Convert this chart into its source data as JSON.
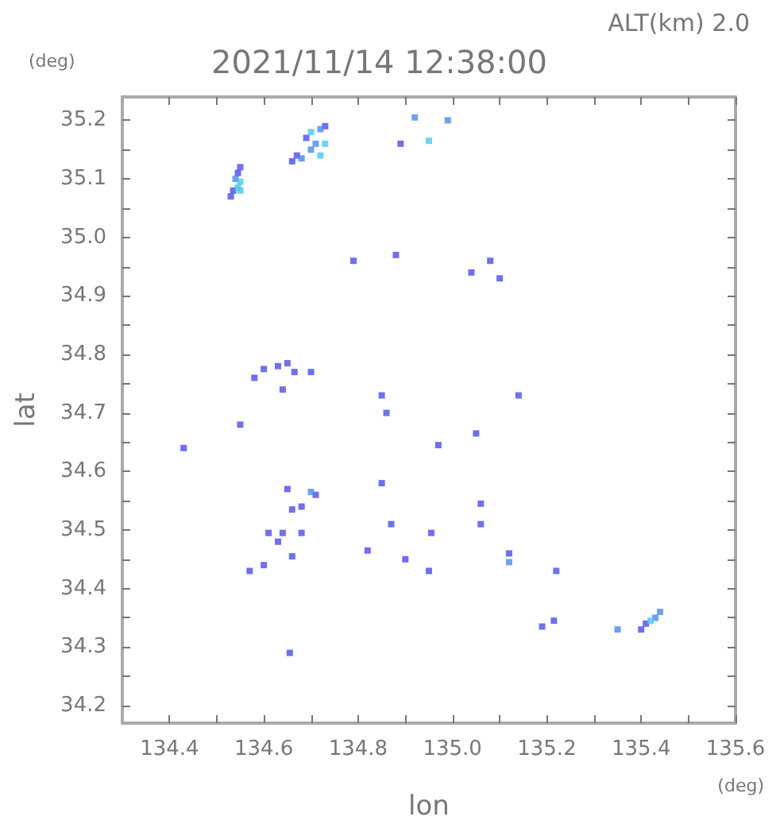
{
  "chart_data": {
    "type": "scatter",
    "title": "2021/11/14 12:38:00",
    "subtitle": "ALT(km) 2.0",
    "xlabel": "lon",
    "ylabel": "lat",
    "annotations": [
      "(deg)",
      "(deg)"
    ],
    "xlim": [
      134.3,
      135.6
    ],
    "ylim": [
      34.17,
      35.24
    ],
    "xticks": [
      134.4,
      {
        "value": 134.5,
        "label": null
      },
      134.6,
      {
        "value": 134.7,
        "label": null
      },
      134.8,
      {
        "value": 134.9,
        "label": null
      },
      {
        "value": 135.0,
        "label": "135.0"
      },
      {
        "value": 135.1,
        "label": null
      },
      135.2,
      {
        "value": 135.3,
        "label": null
      },
      135.4,
      {
        "value": 135.5,
        "label": null
      },
      135.6
    ],
    "yticks": [
      34.2,
      {
        "value": 34.25,
        "label": null
      },
      34.3,
      {
        "value": 34.35,
        "label": null
      },
      34.4,
      {
        "value": 34.45,
        "label": null
      },
      34.5,
      {
        "value": 34.55,
        "label": null
      },
      34.6,
      {
        "value": 34.65,
        "label": null
      },
      34.7,
      {
        "value": 34.75,
        "label": null
      },
      34.8,
      {
        "value": 34.85,
        "label": null
      },
      34.9,
      {
        "value": 34.95,
        "label": null
      },
      {
        "value": 35.0,
        "label": "35.0"
      },
      {
        "value": 35.05,
        "label": null
      },
      35.1,
      {
        "value": 35.15,
        "label": null
      },
      35.2
    ],
    "grid": false,
    "marker": "square",
    "series": [
      {
        "color": "#4b4bf0",
        "x": [
          134.53,
          134.535,
          134.545,
          134.55,
          134.66,
          134.67,
          134.69,
          134.73,
          134.89,
          134.79,
          134.88,
          135.08,
          135.1,
          135.04,
          134.58,
          134.6,
          134.63,
          134.65,
          134.665,
          134.7,
          134.64,
          134.55,
          134.43,
          134.85,
          134.86,
          135.05,
          135.14,
          134.97,
          134.85,
          134.71,
          134.68,
          134.66,
          134.65,
          134.61,
          134.64,
          134.63,
          134.68,
          134.57,
          134.6,
          134.66,
          134.82,
          134.87,
          134.9,
          134.955,
          135.06,
          135.06,
          135.12,
          134.95,
          134.655,
          135.22,
          135.19,
          135.215,
          135.4,
          135.41
        ],
        "values": [
          35.07,
          35.08,
          35.11,
          35.12,
          35.13,
          35.14,
          35.17,
          35.19,
          35.16,
          34.96,
          34.97,
          34.96,
          34.93,
          34.94,
          34.76,
          34.775,
          34.78,
          34.785,
          34.77,
          34.77,
          34.74,
          34.68,
          34.64,
          34.73,
          34.7,
          34.665,
          34.73,
          34.645,
          34.58,
          34.56,
          34.54,
          34.535,
          34.57,
          34.495,
          34.495,
          34.48,
          34.495,
          34.43,
          34.44,
          34.455,
          34.465,
          34.51,
          34.45,
          34.495,
          34.545,
          34.51,
          34.46,
          34.43,
          34.29,
          34.43,
          34.335,
          34.345,
          34.33,
          34.34
        ]
      },
      {
        "color": "#4a8af0",
        "x": [
          134.54,
          134.68,
          134.7,
          134.72,
          134.71,
          134.99,
          134.92,
          135.12,
          135.35,
          135.43,
          135.44,
          134.7
        ],
        "values": [
          35.1,
          35.135,
          35.15,
          35.185,
          35.16,
          35.2,
          35.205,
          34.445,
          34.33,
          34.35,
          34.36,
          34.565
        ]
      },
      {
        "color": "#48c8f0",
        "x": [
          134.545,
          134.55,
          134.7,
          134.73,
          134.72,
          134.95,
          135.42,
          134.55
        ],
        "values": [
          35.085,
          35.095,
          35.18,
          35.16,
          35.14,
          35.165,
          34.345,
          35.08
        ]
      }
    ]
  }
}
